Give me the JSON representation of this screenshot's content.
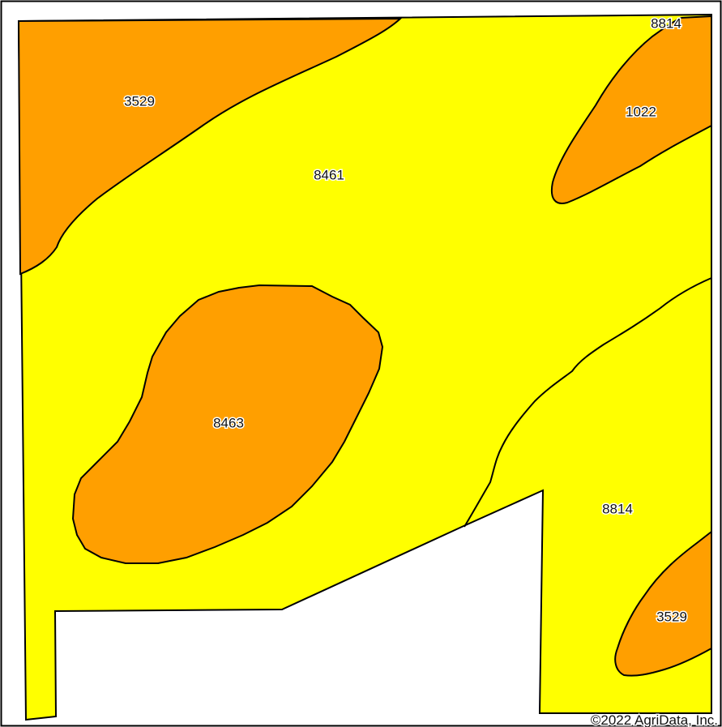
{
  "map": {
    "colors": {
      "yellow_unit": "#ffff00",
      "orange_unit": "#ff9f00",
      "outline": "#000000",
      "background": "#ffffff"
    },
    "labels": {
      "top_left": "3529",
      "top_center": "8461",
      "top_right_corner": "8814",
      "top_right_lobe": "1022",
      "center_left": "8463",
      "lower_right": "8814",
      "bottom_right": "3529"
    },
    "copyright": "©2022 AgriData, Inc."
  }
}
